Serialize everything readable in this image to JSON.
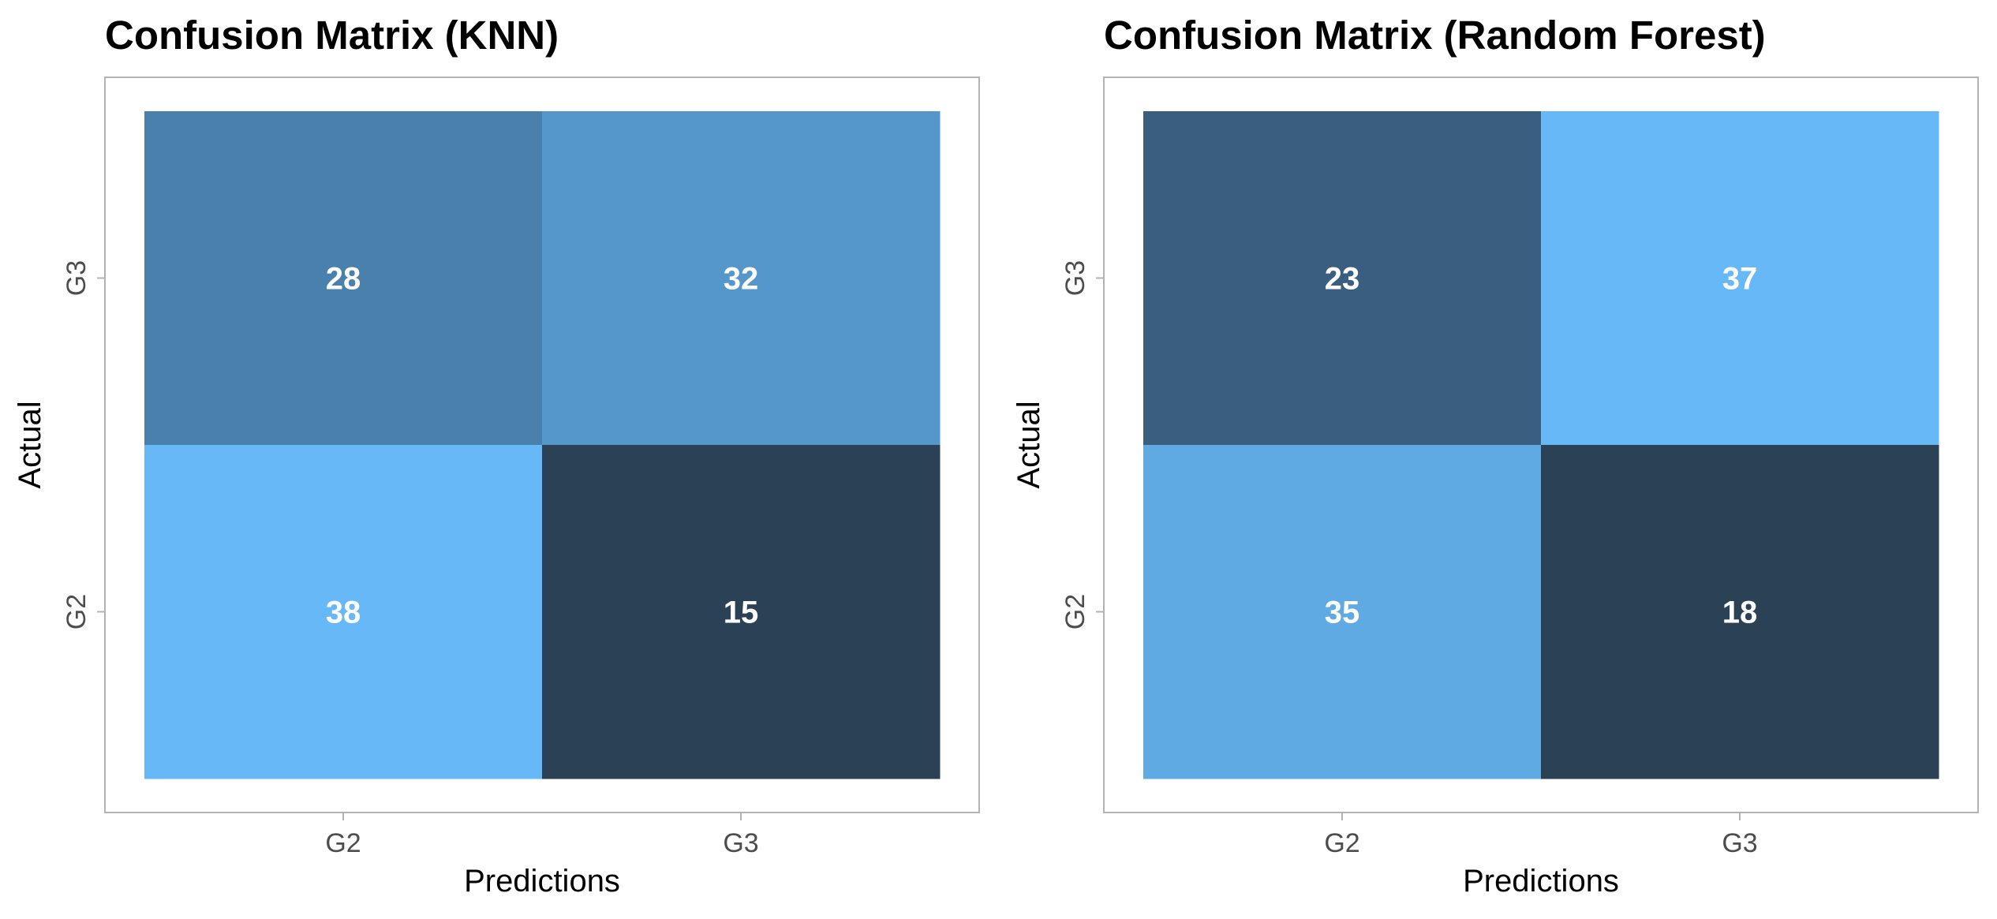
{
  "chart_data": [
    {
      "type": "heatmap",
      "title": "Confusion Matrix (KNN)",
      "xlabel": "Predictions",
      "ylabel": "Actual",
      "x_categories": [
        "G2",
        "G3"
      ],
      "y_categories": [
        "G2",
        "G3"
      ],
      "cells": [
        {
          "x": "G2",
          "y": "G3",
          "value": 28,
          "color": "#4a80ac"
        },
        {
          "x": "G3",
          "y": "G3",
          "value": 32,
          "color": "#5597ca"
        },
        {
          "x": "G2",
          "y": "G2",
          "value": 38,
          "color": "#66b8f6"
        },
        {
          "x": "G3",
          "y": "G2",
          "value": 15,
          "color": "#2b4155"
        }
      ]
    },
    {
      "type": "heatmap",
      "title": "Confusion Matrix (Random Forest)",
      "xlabel": "Predictions",
      "ylabel": "Actual",
      "x_categories": [
        "G2",
        "G3"
      ],
      "y_categories": [
        "G2",
        "G3"
      ],
      "cells": [
        {
          "x": "G2",
          "y": "G3",
          "value": 23,
          "color": "#3a5e7f"
        },
        {
          "x": "G3",
          "y": "G3",
          "value": 37,
          "color": "#66b8f6"
        },
        {
          "x": "G2",
          "y": "G2",
          "value": 35,
          "color": "#60aae3"
        },
        {
          "x": "G3",
          "y": "G2",
          "value": 18,
          "color": "#2b4155"
        }
      ]
    }
  ]
}
